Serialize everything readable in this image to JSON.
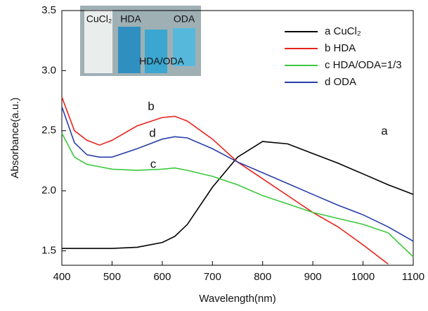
{
  "chart_data": {
    "type": "line",
    "x_label": "Wavelength(nm)",
    "y_label": "Absorbance(a.u.)",
    "x": [
      400,
      425,
      450,
      475,
      500,
      550,
      600,
      625,
      650,
      700,
      750,
      800,
      850,
      900,
      950,
      1000,
      1050,
      1100
    ],
    "series": [
      {
        "name": "a CuCl₂",
        "color": "#000000",
        "values": [
          1.52,
          1.52,
          1.52,
          1.52,
          1.52,
          1.53,
          1.57,
          1.62,
          1.72,
          2.03,
          2.28,
          2.41,
          2.39,
          2.31,
          2.23,
          2.14,
          2.05,
          1.97
        ]
      },
      {
        "name": "b HDA",
        "color": "#e8221b",
        "values": [
          2.78,
          2.5,
          2.42,
          2.38,
          2.42,
          2.54,
          2.61,
          2.62,
          2.58,
          2.43,
          2.24,
          2.1,
          1.96,
          1.82,
          1.7,
          1.55,
          1.39,
          null
        ]
      },
      {
        "name": "c HDA/ODA=1/3",
        "color": "#3cc83c",
        "values": [
          2.48,
          2.28,
          2.22,
          2.2,
          2.18,
          2.17,
          2.18,
          2.19,
          2.17,
          2.12,
          2.05,
          1.96,
          1.89,
          1.82,
          1.77,
          1.72,
          1.65,
          1.45
        ]
      },
      {
        "name": "d ODA",
        "color": "#2a3fa8",
        "values": [
          2.7,
          2.4,
          2.3,
          2.28,
          2.28,
          2.35,
          2.43,
          2.45,
          2.44,
          2.35,
          2.24,
          2.15,
          2.06,
          1.97,
          1.88,
          1.8,
          1.7,
          1.58
        ]
      }
    ],
    "xlim": [
      400,
      1100
    ],
    "xticks": [
      400,
      500,
      600,
      700,
      800,
      900,
      1000,
      1100
    ],
    "ylim": [
      1.38,
      3.5
    ],
    "yticks": [
      1.5,
      {
        "value": 2,
        "label": "2.0"
      },
      2.5,
      {
        "value": 3,
        "label": "3.0"
      },
      3.5
    ],
    "legend": "upper right",
    "annotations": [
      "a",
      "b",
      "c",
      "d"
    ],
    "photo_labels": [
      "CuCl₂",
      "HDA",
      "ODA",
      "HDA/ODA"
    ]
  }
}
